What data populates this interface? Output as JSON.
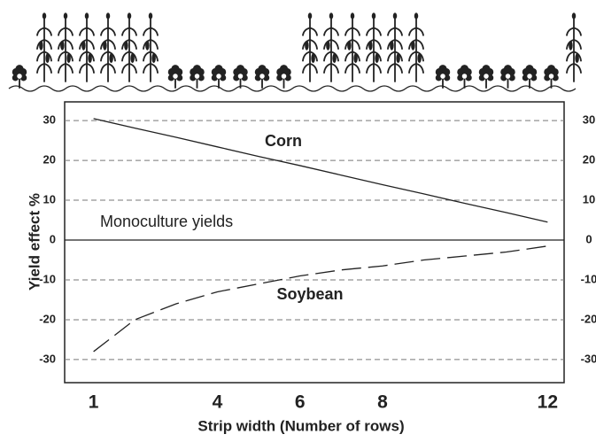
{
  "chart_data": {
    "type": "line",
    "xlabel": "Strip width (Number of rows)",
    "ylabel": "Yield effect %",
    "x": [
      1,
      2,
      3,
      4,
      5,
      6,
      7,
      8,
      9,
      10,
      11,
      12
    ],
    "series": [
      {
        "name": "Corn",
        "color": "#222222",
        "dash": false,
        "values": [
          30.5,
          28.1,
          25.8,
          23.4,
          21.0,
          18.7,
          16.3,
          13.9,
          11.6,
          9.2,
          6.9,
          4.5
        ]
      },
      {
        "name": "Soybean",
        "color": "#222222",
        "dash": true,
        "values": [
          -28,
          -20,
          -16,
          -13,
          -11,
          -9,
          -7.5,
          -6.5,
          -5,
          -4,
          -3,
          -1.5
        ]
      }
    ],
    "reference_line": {
      "value": 0,
      "label": "Monoculture yields"
    },
    "xlim": [
      0.3,
      12.4
    ],
    "ylim": [
      -35.8,
      34.7
    ],
    "xticks": [
      1,
      4,
      6,
      8,
      12
    ],
    "yticks": [
      30,
      20,
      10,
      0,
      -10,
      -20,
      -30
    ],
    "grid": true,
    "right_ticks": true
  }
}
